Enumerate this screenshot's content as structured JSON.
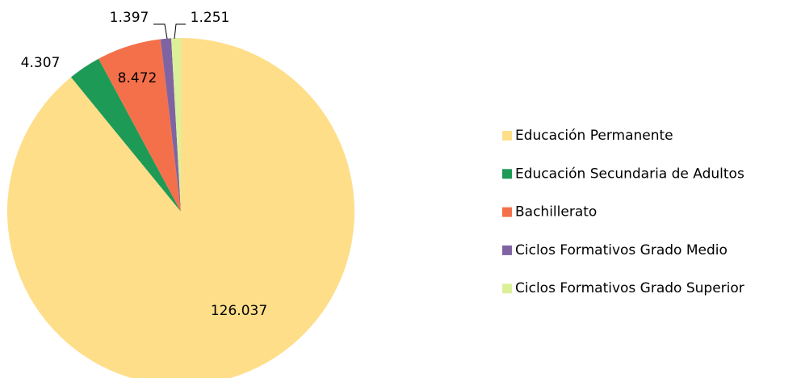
{
  "chart_data": {
    "type": "pie",
    "categories": [
      "Educación Permanente",
      "Educación Secundaria de Adultos",
      "Bachillerato",
      "Ciclos Formativos Grado Medio",
      "Ciclos Formativos Grado Superior"
    ],
    "values": [
      126037,
      4307,
      8472,
      1397,
      1251
    ],
    "value_labels": [
      "126.037",
      "4.307",
      "8.472",
      "1.397",
      "1.251"
    ],
    "colors": [
      "#FEDE89",
      "#1E9A57",
      "#F4704A",
      "#8064A2",
      "#DCF09A"
    ],
    "legend": "right"
  }
}
